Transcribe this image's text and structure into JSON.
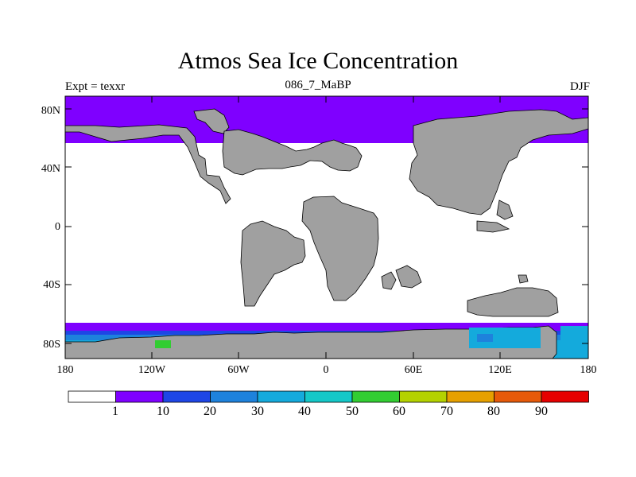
{
  "title": "Atmos Sea Ice Concentration",
  "subtitle_left": "Expt = texxr",
  "subtitle_center": "086_7_MaBP",
  "subtitle_right": "DJF",
  "lat_ticks": [
    "80N",
    "40N",
    "0",
    "40S",
    "80S"
  ],
  "lon_ticks": [
    "180",
    "120W",
    "60W",
    "0",
    "60E",
    "120E",
    "180"
  ],
  "colorbar": {
    "levels": [
      "1",
      "10",
      "20",
      "30",
      "40",
      "50",
      "60",
      "70",
      "80",
      "90"
    ],
    "colors": [
      "#ffffff",
      "#7f00ff",
      "#1e46e6",
      "#1e82dc",
      "#14aadc",
      "#14c8c8",
      "#32cd32",
      "#b4d200",
      "#e6a000",
      "#e65a0a",
      "#e60000"
    ]
  },
  "colors": {
    "land": "#a0a0a0",
    "coast": "#000000",
    "ocean": "#ffffff"
  }
}
